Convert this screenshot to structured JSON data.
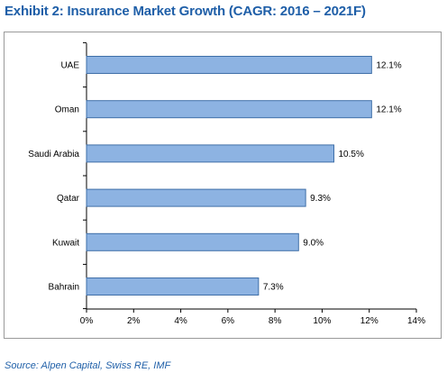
{
  "title": "Exhibit 2:  Insurance Market Growth (CAGR: 2016 – 2021F)",
  "source": "Source:  Alpen Capital, Swiss RE, IMF",
  "chart_data": {
    "type": "bar",
    "orientation": "horizontal",
    "categories": [
      "UAE",
      "Oman",
      "Saudi Arabia",
      "Qatar",
      "Kuwait",
      "Bahrain"
    ],
    "values": [
      12.1,
      12.1,
      10.5,
      9.3,
      9.0,
      7.3
    ],
    "data_labels": [
      "12.1%",
      "12.1%",
      "10.5%",
      "9.3%",
      "9.0%",
      "7.3%"
    ],
    "xlim": [
      0,
      14
    ],
    "xticks": [
      0,
      2,
      4,
      6,
      8,
      10,
      12,
      14
    ],
    "xtick_labels": [
      "0%",
      "2%",
      "4%",
      "6%",
      "8%",
      "10%",
      "12%",
      "14%"
    ],
    "bar_color": "#8db3e2",
    "bar_border_color": "#3f6fa8",
    "grid": false,
    "legend": "none"
  }
}
